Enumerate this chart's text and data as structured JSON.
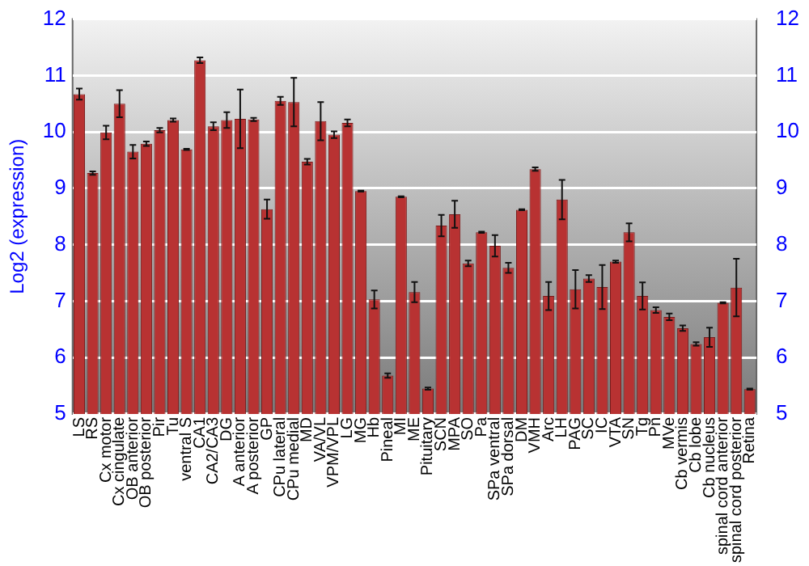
{
  "chart_data": {
    "type": "bar",
    "ylabel": "Log2 (expression)",
    "categories": [
      "LS",
      "RS",
      "Cx motor",
      "Cx cingulate",
      "OB anterior",
      "OB posterior",
      "Pir",
      "Tu",
      "ventral S",
      "CA1",
      "CA2/CA3",
      "DG",
      "A anterior",
      "A posterior",
      "GP",
      "CPu lateral",
      "CPu medial",
      "MD",
      "VA/VL",
      "VPM/VPL",
      "LG",
      "MG",
      "Hb",
      "Pineal",
      "MI",
      "ME",
      "Pituitary",
      "SCN",
      "MPA",
      "SO",
      "Pa",
      "SPa ventral",
      "SPa dorsal",
      "DM",
      "VMH",
      "Arc",
      "LH",
      "PAG",
      "SC",
      "IC",
      "VTA",
      "SN",
      "Tg",
      "Pn",
      "MVe",
      "Cb vermis",
      "Cb lobe",
      "Cb nucleus",
      "spinal cord anterior",
      "spinal cord posterior",
      "Retina"
    ],
    "values": [
      10.67,
      9.27,
      9.99,
      10.5,
      9.65,
      9.79,
      10.03,
      10.21,
      9.69,
      11.27,
      10.1,
      10.21,
      10.23,
      10.22,
      8.63,
      10.55,
      10.53,
      9.47,
      10.19,
      9.95,
      10.16,
      8.95,
      7.03,
      5.68,
      8.85,
      7.16,
      5.45,
      8.34,
      8.54,
      7.67,
      8.22,
      7.98,
      7.59,
      8.62,
      9.34,
      7.09,
      8.8,
      7.21,
      7.4,
      7.25,
      7.7,
      8.22,
      7.09,
      6.84,
      6.72,
      6.52,
      6.24,
      6.36,
      6.97,
      7.24,
      5.44
    ],
    "errors": [
      0.1,
      0.03,
      0.12,
      0.24,
      0.12,
      0.04,
      0.04,
      0.03,
      0.01,
      0.05,
      0.07,
      0.14,
      0.52,
      0.03,
      0.17,
      0.07,
      0.43,
      0.05,
      0.34,
      0.06,
      0.06,
      0.01,
      0.16,
      0.04,
      0.01,
      0.18,
      0.02,
      0.19,
      0.24,
      0.05,
      0.01,
      0.19,
      0.09,
      0.01,
      0.03,
      0.25,
      0.35,
      0.34,
      0.06,
      0.39,
      0.02,
      0.16,
      0.24,
      0.05,
      0.06,
      0.05,
      0.03,
      0.17,
      0.01,
      0.51,
      0.01
    ],
    "color": "#b83232",
    "ylim": [
      5,
      12
    ],
    "yticks": [
      5,
      6,
      7,
      8,
      9,
      10,
      11,
      12
    ],
    "y2lim": [
      5,
      12
    ],
    "y2ticks": [
      5,
      6,
      7,
      8,
      9,
      10,
      11,
      12
    ],
    "grid": "y",
    "legend": false
  }
}
